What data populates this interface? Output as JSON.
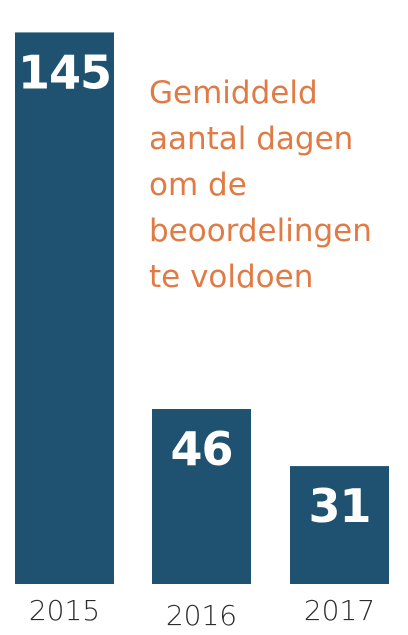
{
  "colors": {
    "bar": "#1e5270",
    "title": "#e07b45",
    "value_label": "#ffffff",
    "category_label": "#2b2b2b"
  },
  "chart_data": {
    "type": "bar",
    "title_lines": [
      "Gemiddeld",
      "aantal dagen",
      "om de",
      "beoordelingen",
      "te voldoen"
    ],
    "categories": [
      "2015",
      "2016",
      "2017"
    ],
    "values": [
      145,
      46,
      31
    ],
    "value_labels": [
      "145",
      "46",
      "31"
    ],
    "xlabel": "",
    "ylabel": "",
    "ylim": [
      0,
      148
    ],
    "grid": false,
    "legend": "none"
  }
}
